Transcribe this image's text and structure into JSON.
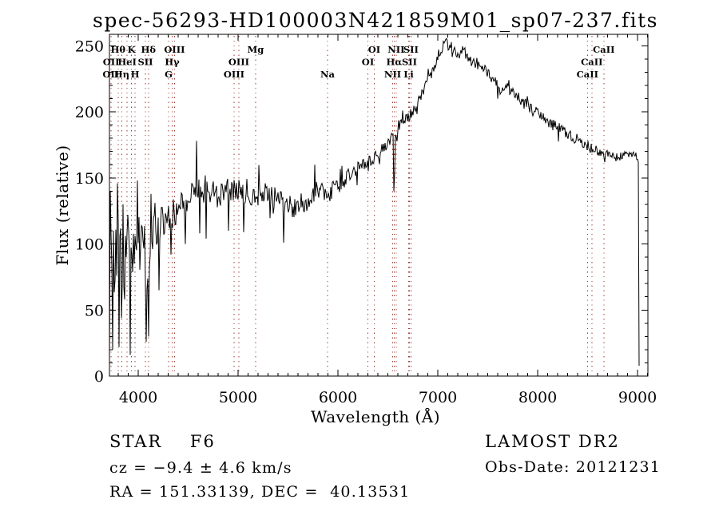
{
  "title": "spec-56293-HD100003N421859M01_sp07-237.fits",
  "colors": {
    "background": "#ffffff",
    "frame": "#000000",
    "spectrum": "#000000",
    "line_marker": "#9b3a33"
  },
  "annotations": {
    "class_line": "STAR    F6",
    "cz_line": "cz = −9.4 ± 4.6 km/s",
    "radec_line": "RA = 151.33139, DEC =  40.13531",
    "survey": "LAMOST DR2",
    "obs_date": "Obs-Date: 20121231"
  },
  "chart_data": {
    "type": "line",
    "title": "spec-56293-HD100003N421859M01_sp07-237.fits",
    "xlabel": "Wavelength (Å)",
    "ylabel": "Flux (relative)",
    "xlim": [
      3712,
      9104
    ],
    "ylim": [
      0,
      258.7
    ],
    "x_ticks": [
      4000,
      5000,
      6000,
      7000,
      8000,
      9000
    ],
    "y_ticks": [
      0,
      50,
      100,
      150,
      200,
      250
    ],
    "x_minor_step": 100,
    "y_minor_step": 10,
    "grid": false,
    "legend": "none",
    "line_markers": {
      "color": "#9b3a33",
      "items": [
        {
          "label": "Hθ",
          "wl": 3798,
          "row": 1
        },
        {
          "label": "K",
          "wl": 3933,
          "row": 1
        },
        {
          "label": "Hδ",
          "wl": 4102,
          "row": 1
        },
        {
          "label": "OIII",
          "wl": 4363,
          "row": 1
        },
        {
          "label": "Mg",
          "wl": 5175,
          "row": 1
        },
        {
          "label": "OI",
          "wl": 6363,
          "row": 1
        },
        {
          "label": "NII",
          "wl": 6583,
          "row": 1
        },
        {
          "label": "SII",
          "wl": 6731,
          "row": 1
        },
        {
          "label": "CaII",
          "wl": 8662,
          "row": 1
        },
        {
          "label": "OII",
          "wl": 3729,
          "row": 2
        },
        {
          "label": "HeI",
          "wl": 3889,
          "row": 2
        },
        {
          "label": "SII",
          "wl": 4072,
          "row": 2
        },
        {
          "label": "Hγ",
          "wl": 4340,
          "row": 2
        },
        {
          "label": "OIII",
          "wl": 5007,
          "row": 2
        },
        {
          "label": "OI",
          "wl": 6300,
          "row": 2
        },
        {
          "label": "Hα",
          "wl": 6563,
          "row": 2
        },
        {
          "label": "SII",
          "wl": 6716,
          "row": 2
        },
        {
          "label": "CaII",
          "wl": 8542,
          "row": 2
        },
        {
          "label": "OII",
          "wl": 3726,
          "row": 3
        },
        {
          "label": "Hη",
          "wl": 3835,
          "row": 3
        },
        {
          "label": "H",
          "wl": 3968,
          "row": 3
        },
        {
          "label": "G",
          "wl": 4305,
          "row": 3
        },
        {
          "label": "OIII",
          "wl": 4959,
          "row": 3
        },
        {
          "label": "Na",
          "wl": 5896,
          "row": 3
        },
        {
          "label": "NII",
          "wl": 6548,
          "row": 3
        },
        {
          "label": "Li",
          "wl": 6708,
          "row": 3
        },
        {
          "label": "CaII",
          "wl": 8498,
          "row": 3
        }
      ]
    },
    "series": {
      "name": "flux",
      "color": "#000000",
      "x_start": 3712,
      "x_end": 9016,
      "sample_step_angstrom": 8,
      "noise_seed": 20121231,
      "continuum_anchors": [
        [
          3712,
          55
        ],
        [
          3725,
          95
        ],
        [
          3740,
          70
        ],
        [
          3760,
          90
        ],
        [
          3780,
          78
        ],
        [
          3800,
          88
        ],
        [
          3830,
          72
        ],
        [
          3860,
          85
        ],
        [
          3890,
          95
        ],
        [
          3920,
          78
        ],
        [
          3950,
          92
        ],
        [
          3980,
          95
        ],
        [
          4010,
          100
        ],
        [
          4040,
          97
        ],
        [
          4070,
          92
        ],
        [
          4100,
          88
        ],
        [
          4130,
          105
        ],
        [
          4160,
          112
        ],
        [
          4200,
          118
        ],
        [
          4250,
          122
        ],
        [
          4300,
          119
        ],
        [
          4340,
          124
        ],
        [
          4400,
          128
        ],
        [
          4500,
          135
        ],
        [
          4600,
          141
        ],
        [
          4700,
          138
        ],
        [
          4800,
          139
        ],
        [
          4860,
          134
        ],
        [
          4900,
          140
        ],
        [
          5000,
          141
        ],
        [
          5100,
          140
        ],
        [
          5175,
          137
        ],
        [
          5250,
          139
        ],
        [
          5350,
          136
        ],
        [
          5450,
          131
        ],
        [
          5550,
          129
        ],
        [
          5650,
          131
        ],
        [
          5750,
          137
        ],
        [
          5820,
          142
        ],
        [
          5896,
          136
        ],
        [
          5950,
          141
        ],
        [
          6050,
          148
        ],
        [
          6150,
          154
        ],
        [
          6250,
          160
        ],
        [
          6350,
          165
        ],
        [
          6450,
          172
        ],
        [
          6540,
          180
        ],
        [
          6555,
          182
        ],
        [
          6563,
          145
        ],
        [
          6575,
          184
        ],
        [
          6650,
          192
        ],
        [
          6750,
          200
        ],
        [
          6850,
          215
        ],
        [
          6950,
          232
        ],
        [
          7020,
          246
        ],
        [
          7080,
          252
        ],
        [
          7140,
          249
        ],
        [
          7200,
          244
        ],
        [
          7260,
          246
        ],
        [
          7320,
          240
        ],
        [
          7380,
          237
        ],
        [
          7440,
          234
        ],
        [
          7500,
          229
        ],
        [
          7560,
          224
        ],
        [
          7620,
          217
        ],
        [
          7680,
          219
        ],
        [
          7740,
          217
        ],
        [
          7800,
          212
        ],
        [
          7860,
          207
        ],
        [
          7920,
          204
        ],
        [
          7980,
          201
        ],
        [
          8060,
          196
        ],
        [
          8140,
          191
        ],
        [
          8220,
          187
        ],
        [
          8300,
          184
        ],
        [
          8400,
          179
        ],
        [
          8500,
          174
        ],
        [
          8600,
          171
        ],
        [
          8700,
          168
        ],
        [
          8800,
          165
        ],
        [
          8880,
          167
        ],
        [
          8950,
          169
        ],
        [
          9000,
          166
        ],
        [
          9008,
          164
        ],
        [
          9012,
          150
        ],
        [
          9014,
          60
        ],
        [
          9016,
          8
        ]
      ],
      "noise_halfwidth_anchors": [
        [
          3712,
          40
        ],
        [
          3800,
          38
        ],
        [
          3900,
          34
        ],
        [
          4000,
          28
        ],
        [
          4100,
          24
        ],
        [
          4200,
          17
        ],
        [
          4300,
          14
        ],
        [
          4450,
          13
        ],
        [
          4600,
          11
        ],
        [
          4800,
          10
        ],
        [
          5000,
          10
        ],
        [
          5300,
          9
        ],
        [
          5600,
          9
        ],
        [
          5900,
          7
        ],
        [
          6100,
          6
        ],
        [
          6300,
          5
        ],
        [
          6563,
          4
        ],
        [
          6800,
          4.5
        ],
        [
          7000,
          4
        ],
        [
          7300,
          4.5
        ],
        [
          7600,
          4.5
        ],
        [
          8000,
          4.5
        ],
        [
          8400,
          4.5
        ],
        [
          8800,
          3.5
        ],
        [
          9000,
          3
        ],
        [
          9016,
          1
        ]
      ],
      "extrema_points": [
        [
          3715,
          12
        ],
        [
          3722,
          140
        ],
        [
          3748,
          20
        ],
        [
          3793,
          146
        ],
        [
          3810,
          22
        ],
        [
          3845,
          130
        ],
        [
          3918,
          16
        ],
        [
          3990,
          148
        ],
        [
          4078,
          26
        ],
        [
          4105,
          30
        ],
        [
          4130,
          138
        ],
        [
          4210,
          65
        ],
        [
          4330,
          92
        ],
        [
          4470,
          100
        ],
        [
          4588,
          178
        ],
        [
          4620,
          108
        ],
        [
          4680,
          104
        ],
        [
          4905,
          110
        ],
        [
          5060,
          109
        ],
        [
          5456,
          101
        ],
        [
          5770,
          160
        ],
        [
          6563,
          140
        ],
        [
          7080,
          255
        ],
        [
          7600,
          210
        ]
      ]
    }
  }
}
